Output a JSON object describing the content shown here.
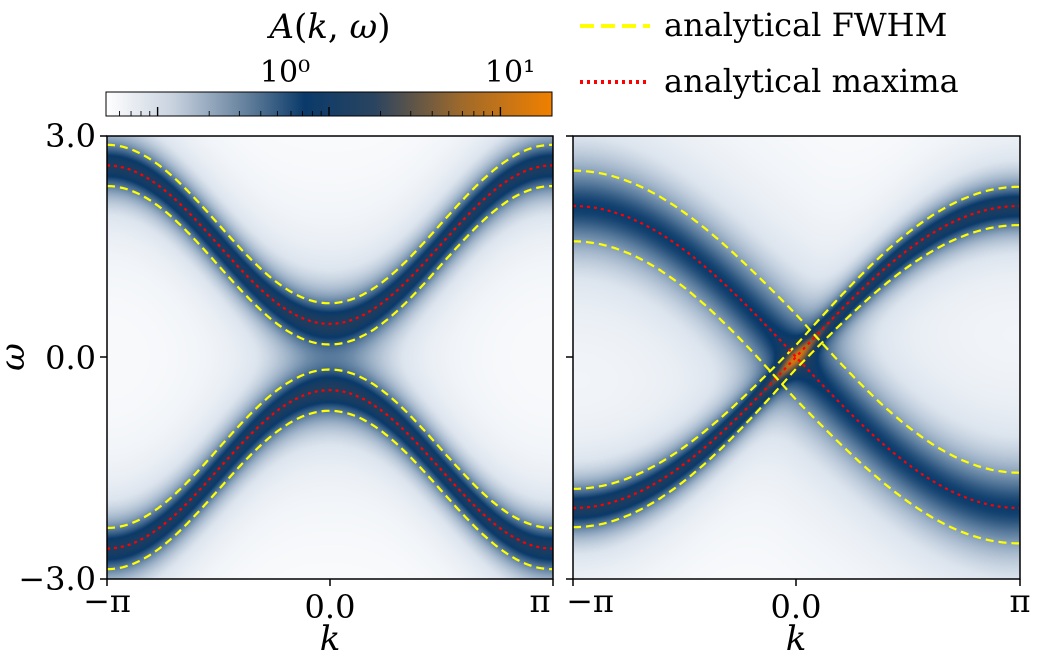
{
  "chart_data": {
    "type": "heatmap",
    "colorbar": {
      "label": "A(k,ω)",
      "scale": "log",
      "ticks": [
        {
          "value": 1,
          "label": "10⁰"
        },
        {
          "value": 10,
          "label": "10¹"
        }
      ],
      "colors": [
        "#ffffff",
        "#0a3a6a",
        "#f08000"
      ],
      "range": [
        0.05,
        20
      ]
    },
    "legend": {
      "position": "top-right",
      "entries": [
        {
          "label": "analytical FWHM",
          "color": "#ffff00",
          "style": "dashed"
        },
        {
          "label": "analytical maxima",
          "color": "#ff0000",
          "style": "dotted"
        }
      ]
    },
    "panels": [
      {
        "name": "left",
        "xlabel": "k",
        "ylabel": "ω",
        "xlim": [
          -3.14159,
          3.14159
        ],
        "ylim": [
          -3.0,
          3.0
        ],
        "xticks": [
          "−π",
          "0.0",
          "π"
        ],
        "yticks": [
          "−3.0",
          "0.0",
          "3.0"
        ],
        "model": "symmetric",
        "bands": [
          {
            "name": "upper band",
            "maxima_formula": "sqrt(((2.6-0.45)/2*(1-cos k)+0.45)^2)",
            "fwhm_half_width": 0.28
          },
          {
            "name": "lower band",
            "maxima_formula": "-sqrt(((2.6-0.45)/2*(1-cos k)+0.45)^2)",
            "fwhm_half_width": 0.28
          }
        ]
      },
      {
        "name": "right",
        "xlabel": "k",
        "xlim": [
          -3.14159,
          3.14159
        ],
        "ylim": [
          -3.0,
          3.0
        ],
        "xticks": [
          "−π",
          "0.0",
          "π"
        ],
        "model": "crossing",
        "bands": [
          {
            "name": "rising band",
            "maxima_formula": "2.05*sin(k/2)",
            "fwhm_half_width": 0.22
          },
          {
            "name": "falling band",
            "maxima_formula": "-2.05*sin(k/2)",
            "fwhm_half_width": 0.6
          }
        ]
      }
    ]
  }
}
